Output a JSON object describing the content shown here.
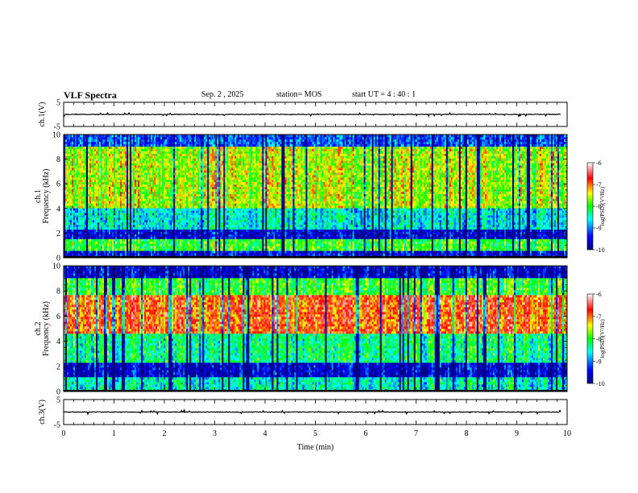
{
  "header": {
    "title": "VLF Spectra",
    "date": "Sep. 2 , 2025",
    "station": "station= MOS",
    "start_ut": "start UT = 4 : 40 : 1"
  },
  "chart_data": [
    {
      "type": "line",
      "ylabel": "ch.1(V)",
      "ylim": [
        -5,
        5
      ],
      "yticks": [
        "5",
        "-5"
      ],
      "xlim": [
        0,
        10
      ],
      "series": [
        {
          "values_approx": 0
        }
      ],
      "color": "#000000"
    },
    {
      "type": "heatmap",
      "ylabel": "ch.1\nFrequency (kHz)",
      "ylim": [
        0,
        10
      ],
      "yticks": [
        "0",
        "2",
        "4",
        "6",
        "8",
        "10"
      ],
      "xlim": [
        0,
        10
      ],
      "colorbar": {
        "label": "log(PSD)(V²/Hz)",
        "range": [
          -10,
          -6
        ],
        "ticks": [
          "-6",
          "-7",
          "-8",
          "-9",
          "-10"
        ]
      },
      "bands": [
        {
          "from_khz": 0,
          "to_khz": 0.6,
          "level": -9.5
        },
        {
          "from_khz": 0.6,
          "to_khz": 1.6,
          "level": -8.0
        },
        {
          "from_khz": 1.6,
          "to_khz": 2.4,
          "level": -9.6
        },
        {
          "from_khz": 2.4,
          "to_khz": 4.0,
          "level": -8.6
        },
        {
          "from_khz": 4.0,
          "to_khz": 9.0,
          "level": -7.6
        },
        {
          "from_khz": 9.0,
          "to_khz": 10.0,
          "level": -9.2
        }
      ]
    },
    {
      "type": "heatmap",
      "ylabel": "ch.2\nFrequency (kHz)",
      "ylim": [
        0,
        10
      ],
      "yticks": [
        "0",
        "2",
        "4",
        "6",
        "8",
        "10"
      ],
      "xlim": [
        0,
        10
      ],
      "colorbar": {
        "label": "log(PSD)(V²/Hz)",
        "range": [
          -10,
          -6
        ],
        "ticks": [
          "-6",
          "-7",
          "-8",
          "-9",
          "-10"
        ]
      },
      "bands": [
        {
          "from_khz": 0,
          "to_khz": 1.2,
          "level": -8.5
        },
        {
          "from_khz": 1.2,
          "to_khz": 2.4,
          "level": -9.6
        },
        {
          "from_khz": 2.4,
          "to_khz": 4.6,
          "level": -8.3
        },
        {
          "from_khz": 4.6,
          "to_khz": 7.6,
          "level": -6.9
        },
        {
          "from_khz": 7.6,
          "to_khz": 9.0,
          "level": -8.0
        },
        {
          "from_khz": 9.0,
          "to_khz": 10.0,
          "level": -9.6
        }
      ]
    },
    {
      "type": "line",
      "ylabel": "ch.3(V)",
      "ylim": [
        -5,
        5
      ],
      "yticks": [
        "5",
        "-5"
      ],
      "xlim": [
        0,
        10
      ],
      "xlabel": "Time (min)",
      "xticks": [
        "0",
        "1",
        "2",
        "3",
        "4",
        "5",
        "6",
        "7",
        "8",
        "9",
        "10"
      ],
      "series": [
        {
          "values_approx": 0
        }
      ],
      "color": "#000000"
    }
  ]
}
